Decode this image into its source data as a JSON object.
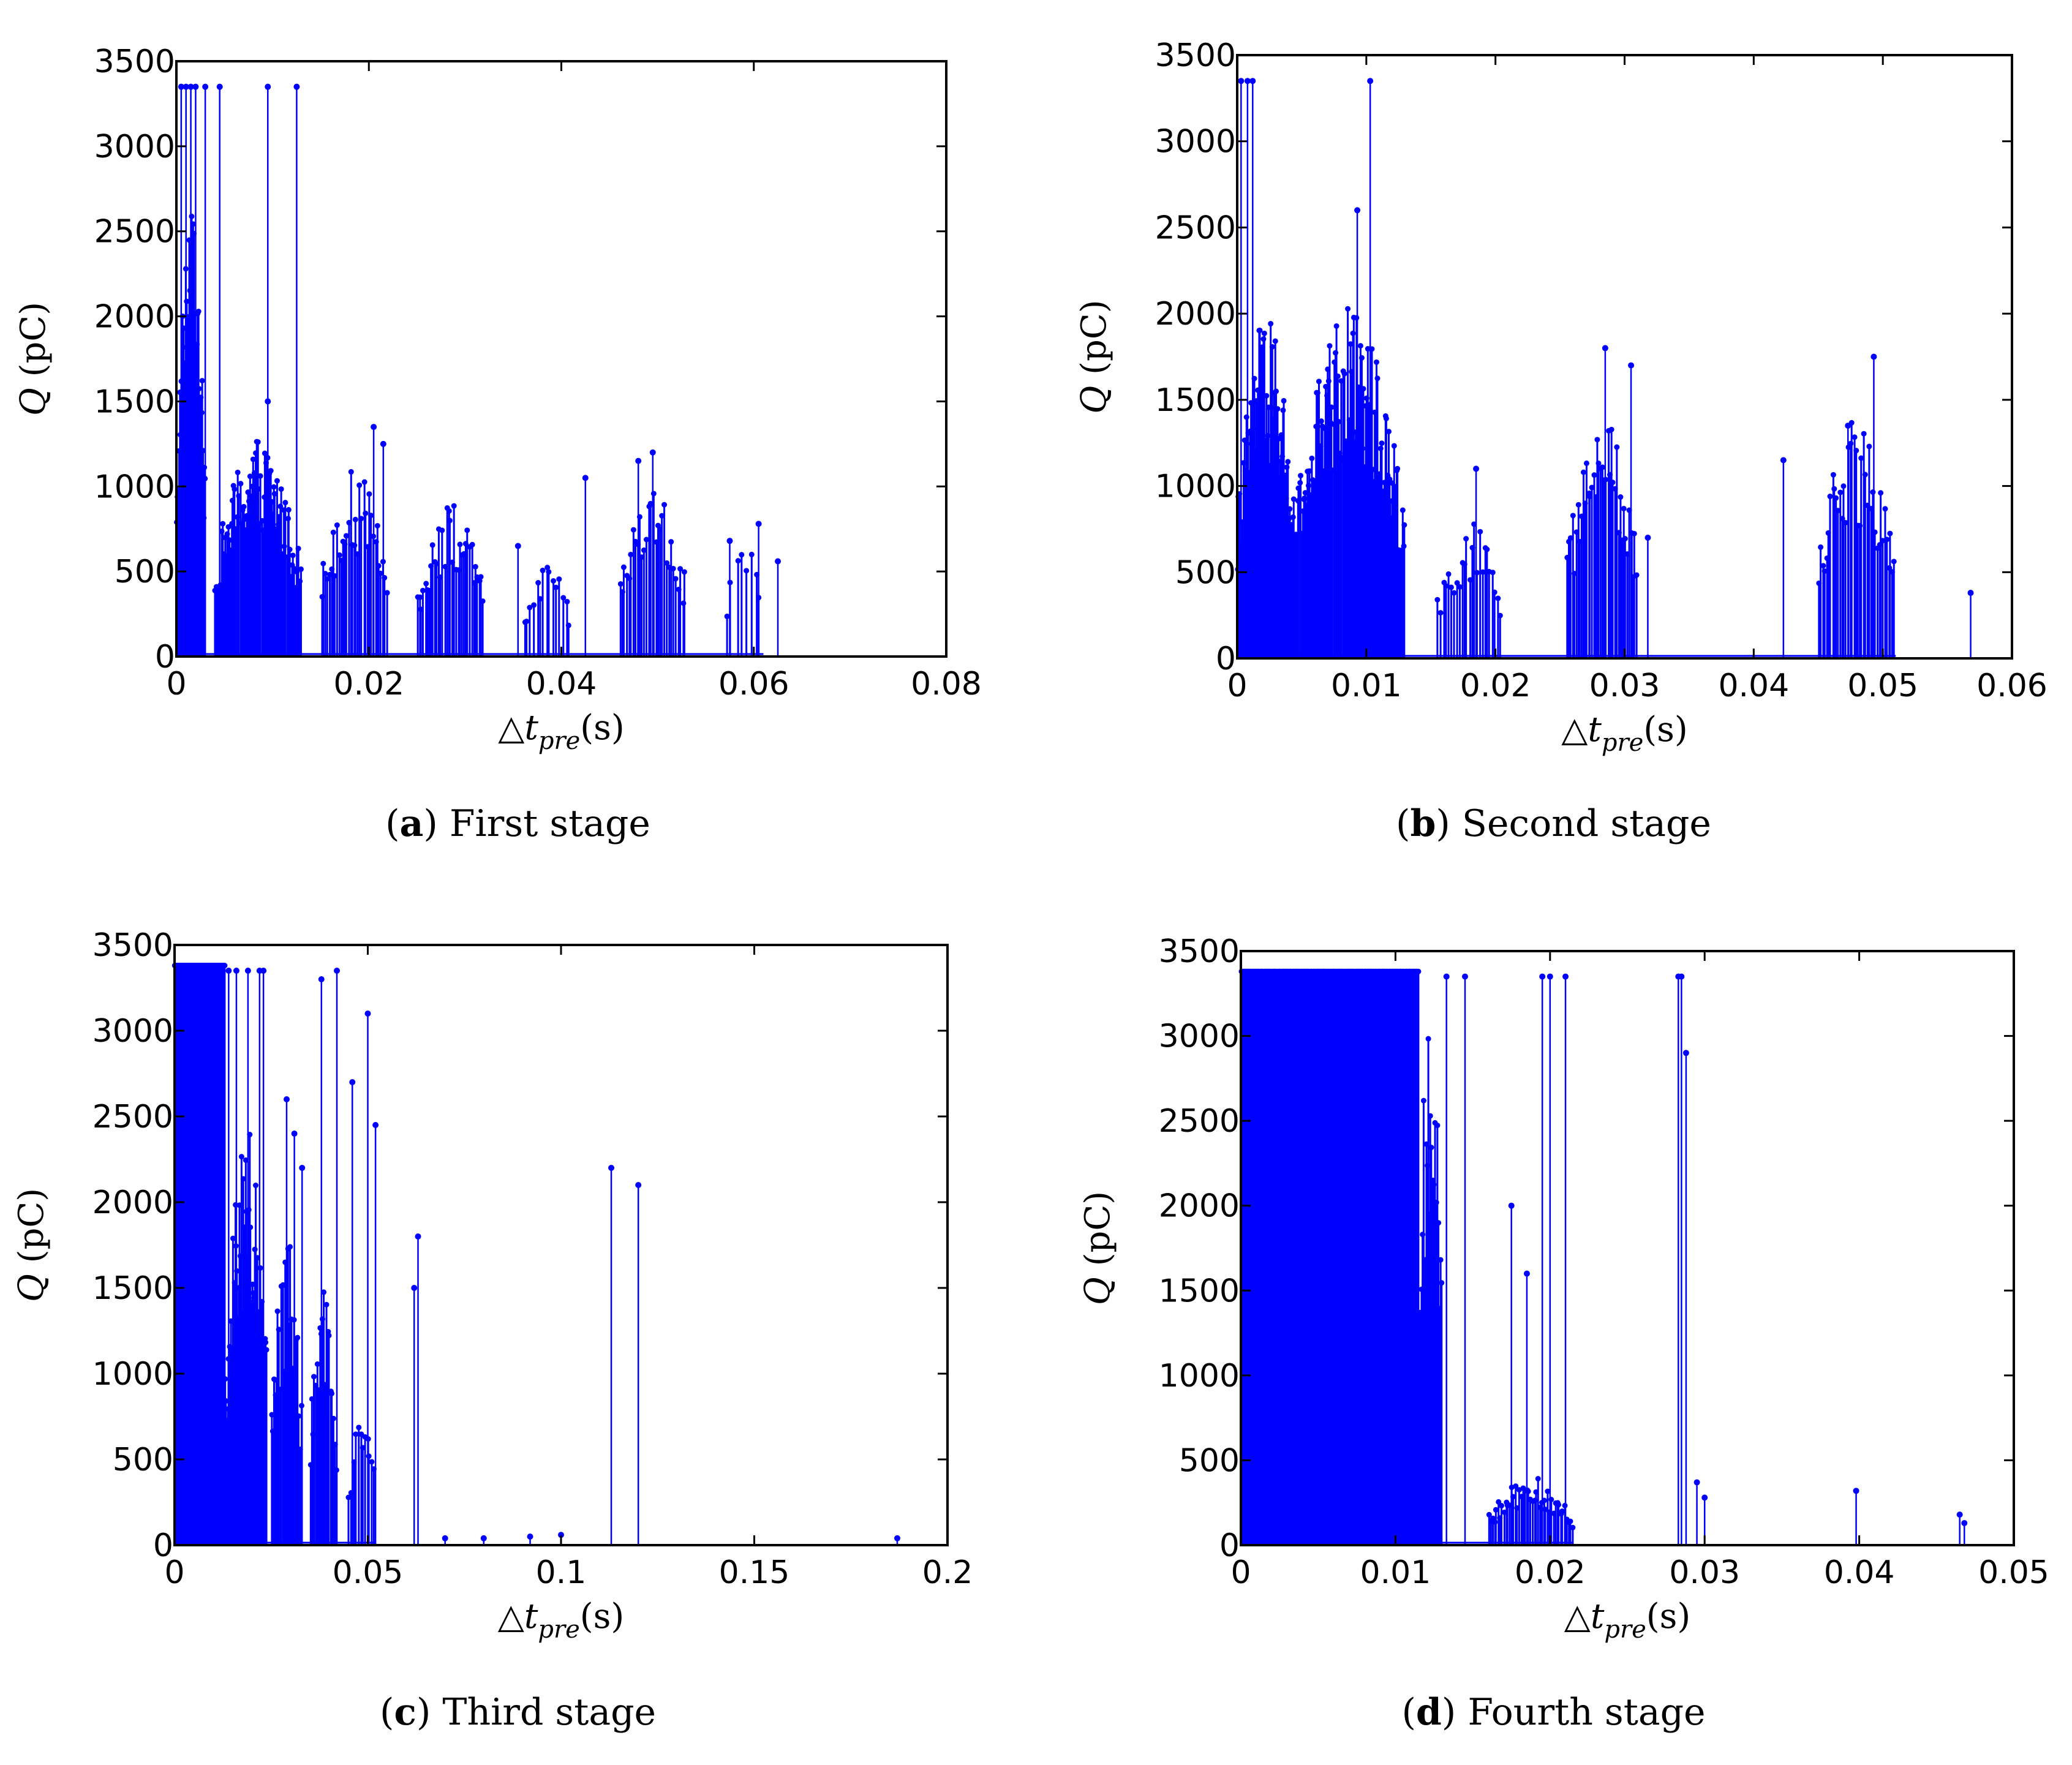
{
  "colors": {
    "stem": "#0000ff",
    "axis": "#000000"
  },
  "panels": [
    {
      "letter": "a",
      "caption": "First stage"
    },
    {
      "letter": "b",
      "caption": "Second stage"
    },
    {
      "letter": "c",
      "caption": "Third stage"
    },
    {
      "letter": "d",
      "caption": "Fourth stage"
    }
  ],
  "chart_data": [
    {
      "type": "stem",
      "title": "(a) First stage",
      "xlabel": "△t_pre(s)",
      "ylabel": "Q (pC)",
      "xlim": [
        0,
        0.08
      ],
      "ylim": [
        0,
        3500
      ],
      "xticks": [
        "0",
        "0.02",
        "0.04",
        "0.06",
        "0.08"
      ],
      "yticks": [
        "0",
        "500",
        "1000",
        "1500",
        "2000",
        "2500",
        "3000",
        "3500"
      ],
      "clusters": [
        {
          "x_range": [
            0,
            0.003
          ],
          "peak": 2600,
          "density": 45
        },
        {
          "x_range": [
            0.004,
            0.013
          ],
          "peak": 1300,
          "density": 80
        },
        {
          "x_range": [
            0.015,
            0.022
          ],
          "peak": 1100,
          "density": 35
        },
        {
          "x_range": [
            0.025,
            0.032
          ],
          "peak": 900,
          "density": 35
        },
        {
          "x_range": [
            0.036,
            0.041
          ],
          "peak": 550,
          "density": 15
        },
        {
          "x_range": [
            0.046,
            0.053
          ],
          "peak": 1000,
          "density": 30
        },
        {
          "x_range": [
            0.057,
            0.061
          ],
          "peak": 700,
          "density": 8
        }
      ],
      "spikes": {
        "x": [
          0.0005,
          0.001,
          0.0015,
          0.002,
          0.003,
          0.0045,
          0.0095,
          0.0125,
          0.0095,
          0.0205,
          0.0215,
          0.0355,
          0.0425,
          0.048,
          0.0495,
          0.0575,
          0.0605,
          0.0625
        ],
        "y": [
          3350,
          3350,
          3350,
          3350,
          3350,
          3350,
          3350,
          3350,
          1500,
          1350,
          1250,
          650,
          1050,
          1150,
          1200,
          680,
          780,
          560
        ]
      }
    },
    {
      "type": "stem",
      "title": "(b) Second stage",
      "xlabel": "△t_pre(s)",
      "ylabel": "Q (pC)",
      "xlim": [
        0,
        0.06
      ],
      "ylim": [
        0,
        3500
      ],
      "xticks": [
        "0",
        "0.01",
        "0.02",
        "0.03",
        "0.04",
        "0.05",
        "0.06"
      ],
      "yticks": [
        "0",
        "500",
        "1000",
        "1500",
        "2000",
        "2500",
        "3000",
        "3500"
      ],
      "clusters": [
        {
          "x_range": [
            0,
            0.0045
          ],
          "peak": 2000,
          "density": 60
        },
        {
          "x_range": [
            0.0045,
            0.013
          ],
          "peak": 2050,
          "density": 110
        },
        {
          "x_range": [
            0.0155,
            0.0205
          ],
          "peak": 800,
          "density": 25
        },
        {
          "x_range": [
            0.0255,
            0.031
          ],
          "peak": 1400,
          "density": 40
        },
        {
          "x_range": [
            0.045,
            0.051
          ],
          "peak": 1400,
          "density": 40
        }
      ],
      "spikes": {
        "x": [
          0.0003,
          0.0008,
          0.0012,
          0.0103,
          0.0093,
          0.0185,
          0.0285,
          0.0305,
          0.0318,
          0.0423,
          0.0473,
          0.0493,
          0.0568
        ],
        "y": [
          3350,
          3350,
          3350,
          3350,
          2600,
          1100,
          1800,
          1700,
          700,
          1150,
          1350,
          1750,
          380
        ]
      }
    },
    {
      "type": "stem",
      "title": "(c) Third stage",
      "xlabel": "△t_pre(s)",
      "ylabel": "Q (pC)",
      "xlim": [
        0,
        0.2
      ],
      "ylim": [
        0,
        3500
      ],
      "xticks": [
        "0",
        "0.05",
        "0.1",
        "0.15",
        "0.2"
      ],
      "yticks": [
        "0",
        "500",
        "1000",
        "1500",
        "2000",
        "2500",
        "3000",
        "3500"
      ],
      "clusters": [
        {
          "x_range": [
            0,
            0.013
          ],
          "peak": 3380,
          "density": 160,
          "solid": true
        },
        {
          "x_range": [
            0.013,
            0.024
          ],
          "peak": 2500,
          "density": 50
        },
        {
          "x_range": [
            0.025,
            0.033
          ],
          "peak": 1800,
          "density": 25
        },
        {
          "x_range": [
            0.035,
            0.042
          ],
          "peak": 1500,
          "density": 20
        },
        {
          "x_range": [
            0.045,
            0.052
          ],
          "peak": 800,
          "density": 12
        }
      ],
      "spikes": {
        "x": [
          0.014,
          0.016,
          0.019,
          0.022,
          0.023,
          0.029,
          0.031,
          0.033,
          0.038,
          0.042,
          0.046,
          0.05,
          0.052,
          0.063,
          0.062,
          0.113,
          0.12,
          0.187,
          0.07,
          0.08,
          0.092,
          0.1
        ],
        "y": [
          3350,
          3350,
          3350,
          3350,
          3350,
          2600,
          2400,
          2200,
          3300,
          3350,
          2700,
          3100,
          2450,
          1800,
          1500,
          2200,
          2100,
          40,
          40,
          40,
          50,
          60
        ]
      }
    },
    {
      "type": "stem",
      "title": "(d) Fourth stage",
      "xlabel": "△t_pre(s)",
      "ylabel": "Q (pC)",
      "xlim": [
        0,
        0.05
      ],
      "ylim": [
        0,
        3500
      ],
      "xticks": [
        "0",
        "0.01",
        "0.02",
        "0.03",
        "0.04",
        "0.05"
      ],
      "yticks": [
        "0",
        "500",
        "1000",
        "1500",
        "2000",
        "2500",
        "3000",
        "3500"
      ],
      "clusters": [
        {
          "x_range": [
            0,
            0.0115
          ],
          "peak": 3380,
          "density": 200,
          "solid": true
        },
        {
          "x_range": [
            0.0115,
            0.013
          ],
          "peak": 3350,
          "density": 25
        },
        {
          "x_range": [
            0.016,
            0.0215
          ],
          "peak": 400,
          "density": 45
        }
      ],
      "spikes": {
        "x": [
          0.0133,
          0.0145,
          0.0175,
          0.0195,
          0.02,
          0.021,
          0.0185,
          0.0283,
          0.0285,
          0.0288,
          0.0295,
          0.03,
          0.0398,
          0.0465,
          0.0468
        ],
        "y": [
          3350,
          3350,
          2000,
          3350,
          3350,
          3350,
          1600,
          3350,
          3350,
          2900,
          370,
          280,
          320,
          180,
          130
        ]
      }
    }
  ]
}
